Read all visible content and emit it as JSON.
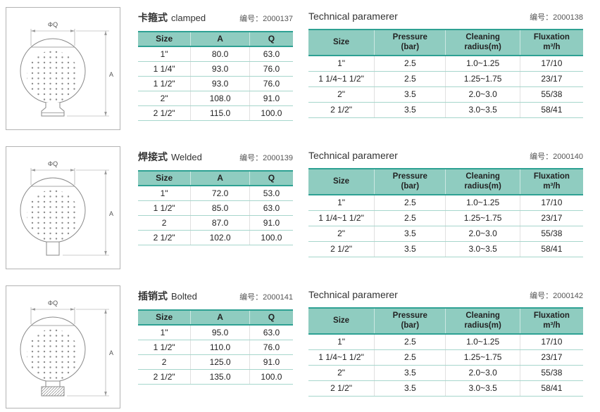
{
  "drawing": {
    "diameter_label": "ΦQ",
    "height_label": "A"
  },
  "sections": [
    {
      "dim_table": {
        "title_cn": "卡箍式",
        "title_en": "clamped",
        "code": "编号：2000137",
        "headers": [
          "Size",
          "A",
          "Q"
        ],
        "rows": [
          [
            "1\"",
            "80.0",
            "63.0"
          ],
          [
            "1 1/4\"",
            "93.0",
            "76.0"
          ],
          [
            "1 1/2\"",
            "93.0",
            "76.0"
          ],
          [
            "2\"",
            "108.0",
            "91.0"
          ],
          [
            "2 1/2\"",
            "115.0",
            "100.0"
          ]
        ]
      },
      "tech_table": {
        "title": "Technical paramerer",
        "code": "编号：2000138",
        "headers": [
          "Size",
          [
            "Pressure",
            "(bar)"
          ],
          [
            "Cleaning",
            "radius(m)"
          ],
          [
            "Fluxation",
            "m³/h"
          ]
        ],
        "rows": [
          [
            "1\"",
            "2.5",
            "1.0~1.25",
            "17/10"
          ],
          [
            "1 1/4~1 1/2\"",
            "2.5",
            "1.25~1.75",
            "23/17"
          ],
          [
            "2\"",
            "3.5",
            "2.0~3.0",
            "55/38"
          ],
          [
            "2 1/2\"",
            "3.5",
            "3.0~3.5",
            "58/41"
          ]
        ]
      }
    },
    {
      "dim_table": {
        "title_cn": "焊接式",
        "title_en": "Welded",
        "code": "编号：2000139",
        "headers": [
          "Size",
          "A",
          "Q"
        ],
        "rows": [
          [
            "1\"",
            "72.0",
            "53.0"
          ],
          [
            "1 1/2\"",
            "85.0",
            "63.0"
          ],
          [
            "2",
            "87.0",
            "91.0"
          ],
          [
            "2 1/2\"",
            "102.0",
            "100.0"
          ]
        ]
      },
      "tech_table": {
        "title": "Technical paramerer",
        "code": "编号：2000140",
        "headers": [
          "Size",
          [
            "Pressure",
            "(bar)"
          ],
          [
            "Cleaning",
            "radius(m)"
          ],
          [
            "Fluxation",
            "m³/h"
          ]
        ],
        "rows": [
          [
            "1\"",
            "2.5",
            "1.0~1.25",
            "17/10"
          ],
          [
            "1 1/4~1 1/2\"",
            "2.5",
            "1.25~1.75",
            "23/17"
          ],
          [
            "2\"",
            "3.5",
            "2.0~3.0",
            "55/38"
          ],
          [
            "2 1/2\"",
            "3.5",
            "3.0~3.5",
            "58/41"
          ]
        ]
      }
    },
    {
      "dim_table": {
        "title_cn": "插销式",
        "title_en": "Bolted",
        "code": "编号：2000141",
        "headers": [
          "Size",
          "A",
          "Q"
        ],
        "rows": [
          [
            "1\"",
            "95.0",
            "63.0"
          ],
          [
            "1 1/2\"",
            "110.0",
            "76.0"
          ],
          [
            "2",
            "125.0",
            "91.0"
          ],
          [
            "2 1/2\"",
            "135.0",
            "100.0"
          ]
        ]
      },
      "tech_table": {
        "title": "Technical paramerer",
        "code": "编号：2000142",
        "headers": [
          "Size",
          [
            "Pressure",
            "(bar)"
          ],
          [
            "Cleaning",
            "radius(m)"
          ],
          [
            "Fluxation",
            "m³/h"
          ]
        ],
        "rows": [
          [
            "1\"",
            "2.5",
            "1.0~1.25",
            "17/10"
          ],
          [
            "1 1/4~1 1/2\"",
            "2.5",
            "1.25~1.75",
            "23/17"
          ],
          [
            "2\"",
            "3.5",
            "2.0~3.0",
            "55/38"
          ],
          [
            "2 1/2\"",
            "3.5",
            "3.0~3.5",
            "58/41"
          ]
        ]
      }
    }
  ]
}
